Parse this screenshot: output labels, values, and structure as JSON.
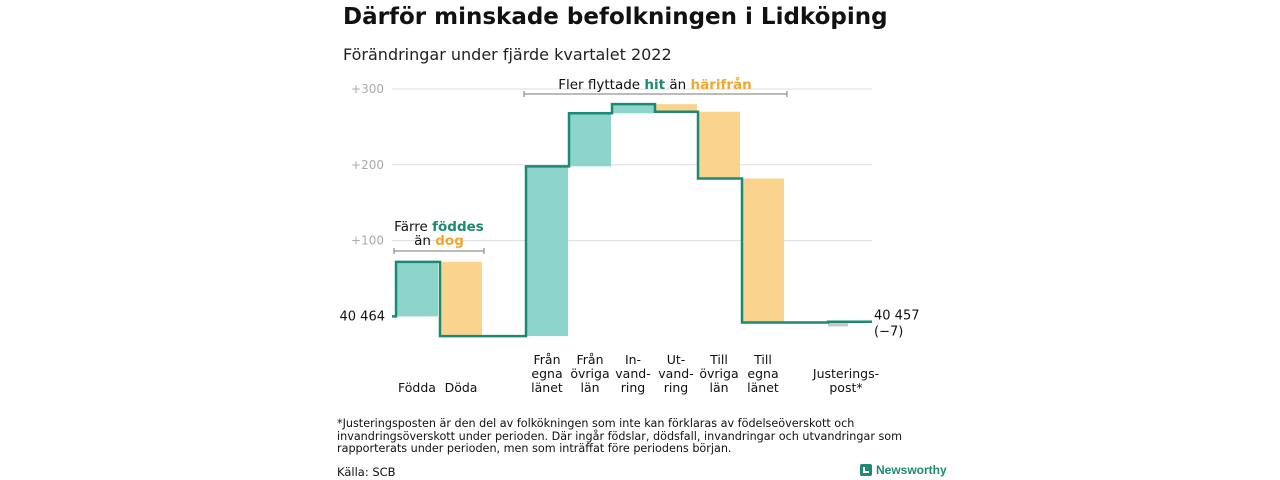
{
  "title": "Därför minskade befolkningen i Lidköping",
  "subtitle": "Förändringar under fjärde kvartalet 2022",
  "chart_data": {
    "type": "waterfall",
    "start_value": 40464,
    "start_label": "40 464",
    "end_label": "40 457",
    "end_change_label": "(−7)",
    "ylim": [
      -27,
      305
    ],
    "yticks": [
      {
        "value": 100,
        "label": "+100"
      },
      {
        "value": 200,
        "label": "+200"
      },
      {
        "value": 300,
        "label": "+300"
      }
    ],
    "grid": true,
    "steps": [
      {
        "label_lines": [
          "Födda"
        ],
        "change": 72,
        "kind": "in"
      },
      {
        "label_lines": [
          "Döda"
        ],
        "change": -98,
        "kind": "out"
      },
      {
        "label_lines": [
          "Från",
          "egna",
          "länet"
        ],
        "change": 224,
        "kind": "in"
      },
      {
        "label_lines": [
          "Från",
          "övriga",
          "län"
        ],
        "change": 70,
        "kind": "in"
      },
      {
        "label_lines": [
          "In-",
          "vand-",
          "ring"
        ],
        "change": 12,
        "kind": "in"
      },
      {
        "label_lines": [
          "Ut-",
          "vand-",
          "ring"
        ],
        "change": -10,
        "kind": "out"
      },
      {
        "label_lines": [
          "Till",
          "övriga",
          "län"
        ],
        "change": -88,
        "kind": "out"
      },
      {
        "label_lines": [
          "Till",
          "egna",
          "länet"
        ],
        "change": -190,
        "kind": "out"
      },
      {
        "label_lines": [
          "Justerings-",
          "post*"
        ],
        "change": 1,
        "kind": "adjust"
      }
    ],
    "annotations": [
      {
        "line1": "Färre",
        "highlight1": "föddes",
        "line2": "än",
        "highlight2": "dog",
        "from_step": 0,
        "to_step": 1
      },
      {
        "line1": "Fler flyttade",
        "highlight1": "hit",
        "line2": "än",
        "highlight2": "härifrån",
        "from_step": 2,
        "to_step": 7
      }
    ],
    "colors": {
      "in": "#8dd5cb",
      "out": "#fad48f",
      "adjust": "#c8c8c8",
      "line": "#1c8a72",
      "highlight_in": "#1c8a72",
      "highlight_out": "#f0a830",
      "grid": "#dddddd",
      "tick": "#aaaaaa"
    }
  },
  "footnote": "*Justeringsposten är den del av folkökningen som inte kan förklaras av födelseöverskott och invandringsöverskott under perioden. Där ingår födslar, dödsfall, invandringar och utvandringar som rapporterats under perioden, men som inträffat före periodens början.",
  "source": "Källa: SCB",
  "brand": "Newsworthy"
}
